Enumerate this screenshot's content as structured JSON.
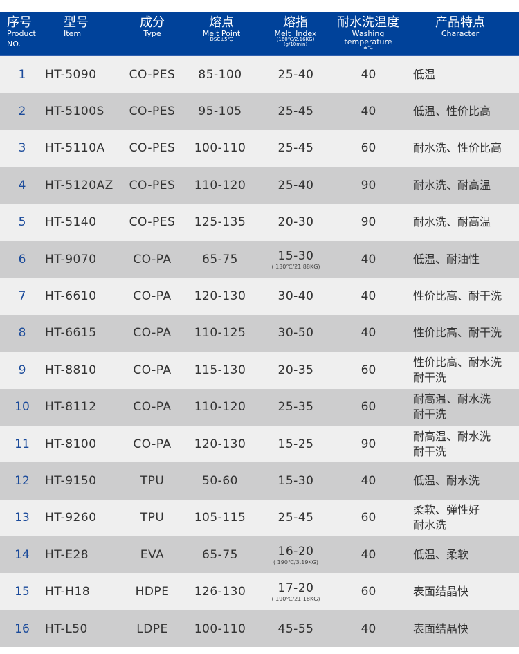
{
  "header": {
    "no": {
      "zh": "序号",
      "en": "Product",
      "en2": "NO."
    },
    "model": {
      "zh": "型号",
      "en": "Item"
    },
    "type": {
      "zh": "成分",
      "en": "Type"
    },
    "melt_point": {
      "zh": "熔点",
      "en": "Melt Point",
      "sub": "DSC±5℃"
    },
    "melt_index": {
      "zh": "熔指",
      "en": "Melt  Index",
      "sub": "(160℃/2.16KG)",
      "sub2": "(g/10min)"
    },
    "washing": {
      "zh": "耐水洗温度",
      "en": "Washing",
      "en2": "temperature",
      "sub": "±℃"
    },
    "character": {
      "zh": "产品特点",
      "en": "Character"
    }
  },
  "colors": {
    "header_bg": "#00429a",
    "row_odd": "#efefef",
    "row_even": "#cdcdce",
    "number_text": "#1a4a9a"
  },
  "rows": [
    {
      "no": "1",
      "model": "HT-5090",
      "type": "CO-PES",
      "mp": "85-100",
      "mi": "25-40",
      "mi_note": "",
      "wt": "40",
      "ch": "低温"
    },
    {
      "no": "2",
      "model": "HT-5100S",
      "type": "CO-PES",
      "mp": "95-105",
      "mi": "25-45",
      "mi_note": "",
      "wt": "40",
      "ch": "低温、性价比高"
    },
    {
      "no": "3",
      "model": "HT-5110A",
      "type": "CO-PES",
      "mp": "100-110",
      "mi": "25-45",
      "mi_note": "",
      "wt": "60",
      "ch": "耐水洗、性价比高"
    },
    {
      "no": "4",
      "model": "HT-5120AZ",
      "type": "CO-PES",
      "mp": "110-120",
      "mi": "25-40",
      "mi_note": "",
      "wt": "90",
      "ch": "耐水洗、耐高温"
    },
    {
      "no": "5",
      "model": "HT-5140",
      "type": "CO-PES",
      "mp": "125-135",
      "mi": "20-30",
      "mi_note": "",
      "wt": "90",
      "ch": "耐水洗、耐高温"
    },
    {
      "no": "6",
      "model": "HT-9070",
      "type": "CO-PA",
      "mp": "65-75",
      "mi": "15-30",
      "mi_note": "( 130℃/21.88KG)",
      "wt": "40",
      "ch": "低温、耐油性"
    },
    {
      "no": "7",
      "model": "HT-6610",
      "type": "CO-PA",
      "mp": "120-130",
      "mi": "30-40",
      "mi_note": "",
      "wt": "40",
      "ch": "性价比高、耐干洗"
    },
    {
      "no": "8",
      "model": "HT-6615",
      "type": "CO-PA",
      "mp": "110-125",
      "mi": "30-50",
      "mi_note": "",
      "wt": "40",
      "ch": "性价比高、耐干洗"
    },
    {
      "no": "9",
      "model": "HT-8810",
      "type": "CO-PA",
      "mp": "115-130",
      "mi": "20-35",
      "mi_note": "",
      "wt": "60",
      "ch": "性价比高、耐水洗\n耐干洗"
    },
    {
      "no": "10",
      "model": "HT-8112",
      "type": "CO-PA",
      "mp": "110-120",
      "mi": "25-35",
      "mi_note": "",
      "wt": "60",
      "ch": "耐高温、耐水洗\n耐干洗"
    },
    {
      "no": "11",
      "model": "HT-8100",
      "type": "CO-PA",
      "mp": "120-130",
      "mi": "15-25",
      "mi_note": "",
      "wt": "90",
      "ch": "耐高温、耐水洗\n耐干洗"
    },
    {
      "no": "12",
      "model": "HT-9150",
      "type": "TPU",
      "mp": "50-60",
      "mi": "15-30",
      "mi_note": "",
      "wt": "40",
      "ch": "低温、耐水洗"
    },
    {
      "no": "13",
      "model": "HT-9260",
      "type": "TPU",
      "mp": "105-115",
      "mi": "25-45",
      "mi_note": "",
      "wt": "60",
      "ch": "柔软、弹性好\n耐水洗"
    },
    {
      "no": "14",
      "model": "HT-E28",
      "type": "EVA",
      "mp": "65-75",
      "mi": "16-20",
      "mi_note": "( 190℃/3.19KG)",
      "wt": "40",
      "ch": "低温、柔软"
    },
    {
      "no": "15",
      "model": "HT-H18",
      "type": "HDPE",
      "mp": "126-130",
      "mi": "17-20",
      "mi_note": "( 190℃/21.18KG)",
      "wt": "60",
      "ch": "表面结晶快"
    },
    {
      "no": "16",
      "model": "HT-L50",
      "type": "LDPE",
      "mp": "100-110",
      "mi": "45-55",
      "mi_note": "",
      "wt": "40",
      "ch": "表面结晶快"
    }
  ]
}
